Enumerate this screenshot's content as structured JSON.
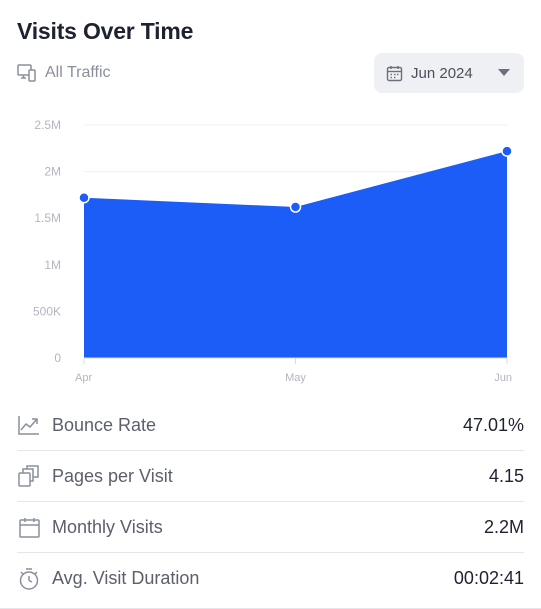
{
  "card": {
    "title": "Visits Over Time",
    "traffic_filter": "All Traffic",
    "date_selector": "Jun 2024"
  },
  "chart_data": {
    "type": "area",
    "categories": [
      "Apr",
      "May",
      "Jun"
    ],
    "series": [
      {
        "values": [
          1720000,
          1620000,
          2220000
        ],
        "color": "#1c5cf7"
      }
    ],
    "y_ticks": [
      0,
      500000,
      1000000,
      1500000,
      2000000,
      2500000
    ],
    "y_tick_labels": [
      "0",
      "500K",
      "1M",
      "1.5M",
      "2M",
      "2.5M"
    ],
    "ylim": [
      0,
      2500000
    ],
    "grid": true,
    "title": "",
    "xlabel": "",
    "ylabel": ""
  },
  "metrics": [
    {
      "label": "Bounce Rate",
      "value": "47.01%",
      "icon": "trend-down-icon"
    },
    {
      "label": "Pages per Visit",
      "value": "4.15",
      "icon": "pages-icon"
    },
    {
      "label": "Monthly Visits",
      "value": "2.2M",
      "icon": "calendar-icon"
    },
    {
      "label": "Avg. Visit Duration",
      "value": "00:02:41",
      "icon": "stopwatch-icon"
    }
  ],
  "colors": {
    "accent": "#1c5cf7",
    "muted_text": "#8a8f9c",
    "divider": "#e4e6ea"
  }
}
